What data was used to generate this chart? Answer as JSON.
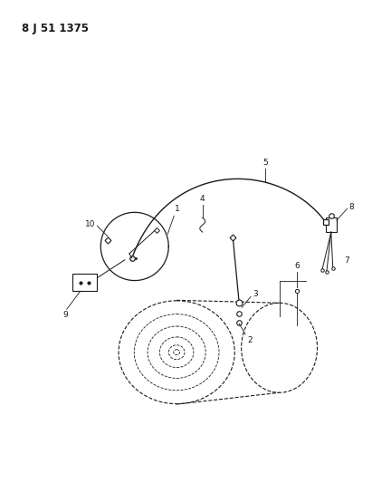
{
  "title": "8 J 51 1375",
  "bg_color": "#ffffff",
  "line_color": "#1a1a1a",
  "fig_width": 4.11,
  "fig_height": 5.33,
  "dpi": 100
}
